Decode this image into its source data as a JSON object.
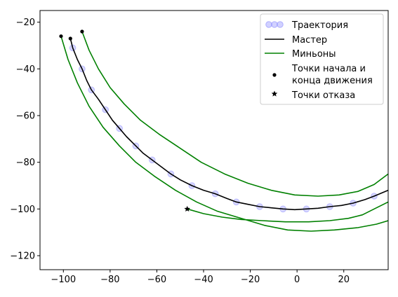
{
  "chart_data": {
    "type": "line",
    "title": "",
    "xlabel": "",
    "ylabel": "",
    "xlim": [
      -110,
      39
    ],
    "ylim": [
      -126,
      -15
    ],
    "xticks": [
      -100,
      -80,
      -60,
      -40,
      -20,
      0,
      20
    ],
    "yticks": [
      -20,
      -40,
      -60,
      -80,
      -100,
      -120
    ],
    "grid": false,
    "legend_position": "top-right",
    "legend": [
      {
        "key": "trajectory",
        "label": "Траектория"
      },
      {
        "key": "master",
        "label": "Мастер"
      },
      {
        "key": "minions",
        "label": "Миньоны"
      },
      {
        "key": "endpoints",
        "label": "Точки начала и\nконца движения"
      },
      {
        "key": "failure",
        "label": "Точки отказа"
      }
    ],
    "colors": {
      "trajectory": "#7a7aff",
      "master": "#000000",
      "minions": "#008000",
      "markers": "#000000"
    },
    "series": [
      {
        "key": "trajectory",
        "type": "scatter",
        "name": "Траектория",
        "points": [
          [
            -96,
            -31
          ],
          [
            -92,
            -40
          ],
          [
            -88,
            -49
          ],
          [
            -82,
            -57.5
          ],
          [
            -76,
            -65.5
          ],
          [
            -69,
            -73
          ],
          [
            -62,
            -79
          ],
          [
            -54,
            -85
          ],
          [
            -45,
            -90
          ],
          [
            -35,
            -93.5
          ],
          [
            -26,
            -97
          ],
          [
            -16,
            -99
          ],
          [
            -6,
            -100
          ],
          [
            4,
            -100
          ],
          [
            14,
            -99
          ],
          [
            24,
            -97.5
          ],
          [
            33,
            -94.5
          ]
        ]
      },
      {
        "key": "master",
        "type": "line",
        "name": "Мастер",
        "points": [
          [
            -97,
            -27
          ],
          [
            -96,
            -31
          ],
          [
            -94,
            -36
          ],
          [
            -92,
            -40
          ],
          [
            -90,
            -45
          ],
          [
            -88,
            -49
          ],
          [
            -85,
            -53
          ],
          [
            -82,
            -57.5
          ],
          [
            -79,
            -62
          ],
          [
            -76,
            -65.5
          ],
          [
            -73,
            -69
          ],
          [
            -69,
            -73
          ],
          [
            -66,
            -76
          ],
          [
            -62,
            -79
          ],
          [
            -58,
            -82
          ],
          [
            -54,
            -85
          ],
          [
            -50,
            -87.5
          ],
          [
            -45,
            -90
          ],
          [
            -40,
            -92
          ],
          [
            -35,
            -93.5
          ],
          [
            -30,
            -95.5
          ],
          [
            -26,
            -97
          ],
          [
            -21,
            -98
          ],
          [
            -16,
            -99
          ],
          [
            -11,
            -99.5
          ],
          [
            -6,
            -100
          ],
          [
            -1,
            -100.3
          ],
          [
            4,
            -100
          ],
          [
            9,
            -99.7
          ],
          [
            14,
            -99
          ],
          [
            19,
            -98.5
          ],
          [
            24,
            -97.5
          ],
          [
            29,
            -96
          ],
          [
            33,
            -94.5
          ],
          [
            39,
            -92
          ]
        ]
      },
      {
        "key": "minion_outer",
        "type": "line",
        "name": "Миньоны",
        "points": [
          [
            -101,
            -26
          ],
          [
            -98,
            -36
          ],
          [
            -94,
            -46
          ],
          [
            -89,
            -56
          ],
          [
            -83,
            -65
          ],
          [
            -76,
            -73
          ],
          [
            -69,
            -80
          ],
          [
            -61,
            -86
          ],
          [
            -52,
            -92
          ],
          [
            -43,
            -97
          ],
          [
            -34,
            -101
          ],
          [
            -24,
            -104
          ],
          [
            -14,
            -107
          ],
          [
            -4,
            -109
          ],
          [
            6,
            -109.5
          ],
          [
            16,
            -109
          ],
          [
            26,
            -108
          ],
          [
            34,
            -106.5
          ],
          [
            39,
            -105
          ]
        ]
      },
      {
        "key": "minion_inner",
        "type": "line",
        "name": "Миньоны",
        "points": [
          [
            -92,
            -24
          ],
          [
            -89,
            -32
          ],
          [
            -85,
            -40
          ],
          [
            -80,
            -48
          ],
          [
            -74,
            -55
          ],
          [
            -67,
            -62
          ],
          [
            -59,
            -68
          ],
          [
            -50,
            -74
          ],
          [
            -41,
            -80
          ],
          [
            -31,
            -85
          ],
          [
            -21,
            -89
          ],
          [
            -11,
            -92
          ],
          [
            -1,
            -94
          ],
          [
            9,
            -94.5
          ],
          [
            18,
            -94
          ],
          [
            26,
            -92.5
          ],
          [
            33,
            -89.5
          ],
          [
            39,
            -85
          ]
        ]
      },
      {
        "key": "minion_failed",
        "type": "line",
        "name": "Миньоны",
        "points": [
          [
            -47,
            -100
          ],
          [
            -40,
            -102
          ],
          [
            -32,
            -103.5
          ],
          [
            -24,
            -104.5
          ],
          [
            -15,
            -105
          ],
          [
            -5,
            -105.5
          ],
          [
            5,
            -105.5
          ],
          [
            14,
            -105
          ],
          [
            22,
            -104
          ],
          [
            28,
            -102.5
          ],
          [
            33,
            -100
          ],
          [
            39,
            -97
          ]
        ]
      },
      {
        "key": "endpoints",
        "type": "scatter",
        "name": "Точки начала и конца движения",
        "points": [
          [
            -101,
            -26
          ],
          [
            -97,
            -27
          ],
          [
            -92,
            -24
          ]
        ]
      },
      {
        "key": "failure",
        "type": "scatter",
        "name": "Точки отказа",
        "points": [
          [
            -47,
            -100
          ]
        ]
      }
    ]
  }
}
